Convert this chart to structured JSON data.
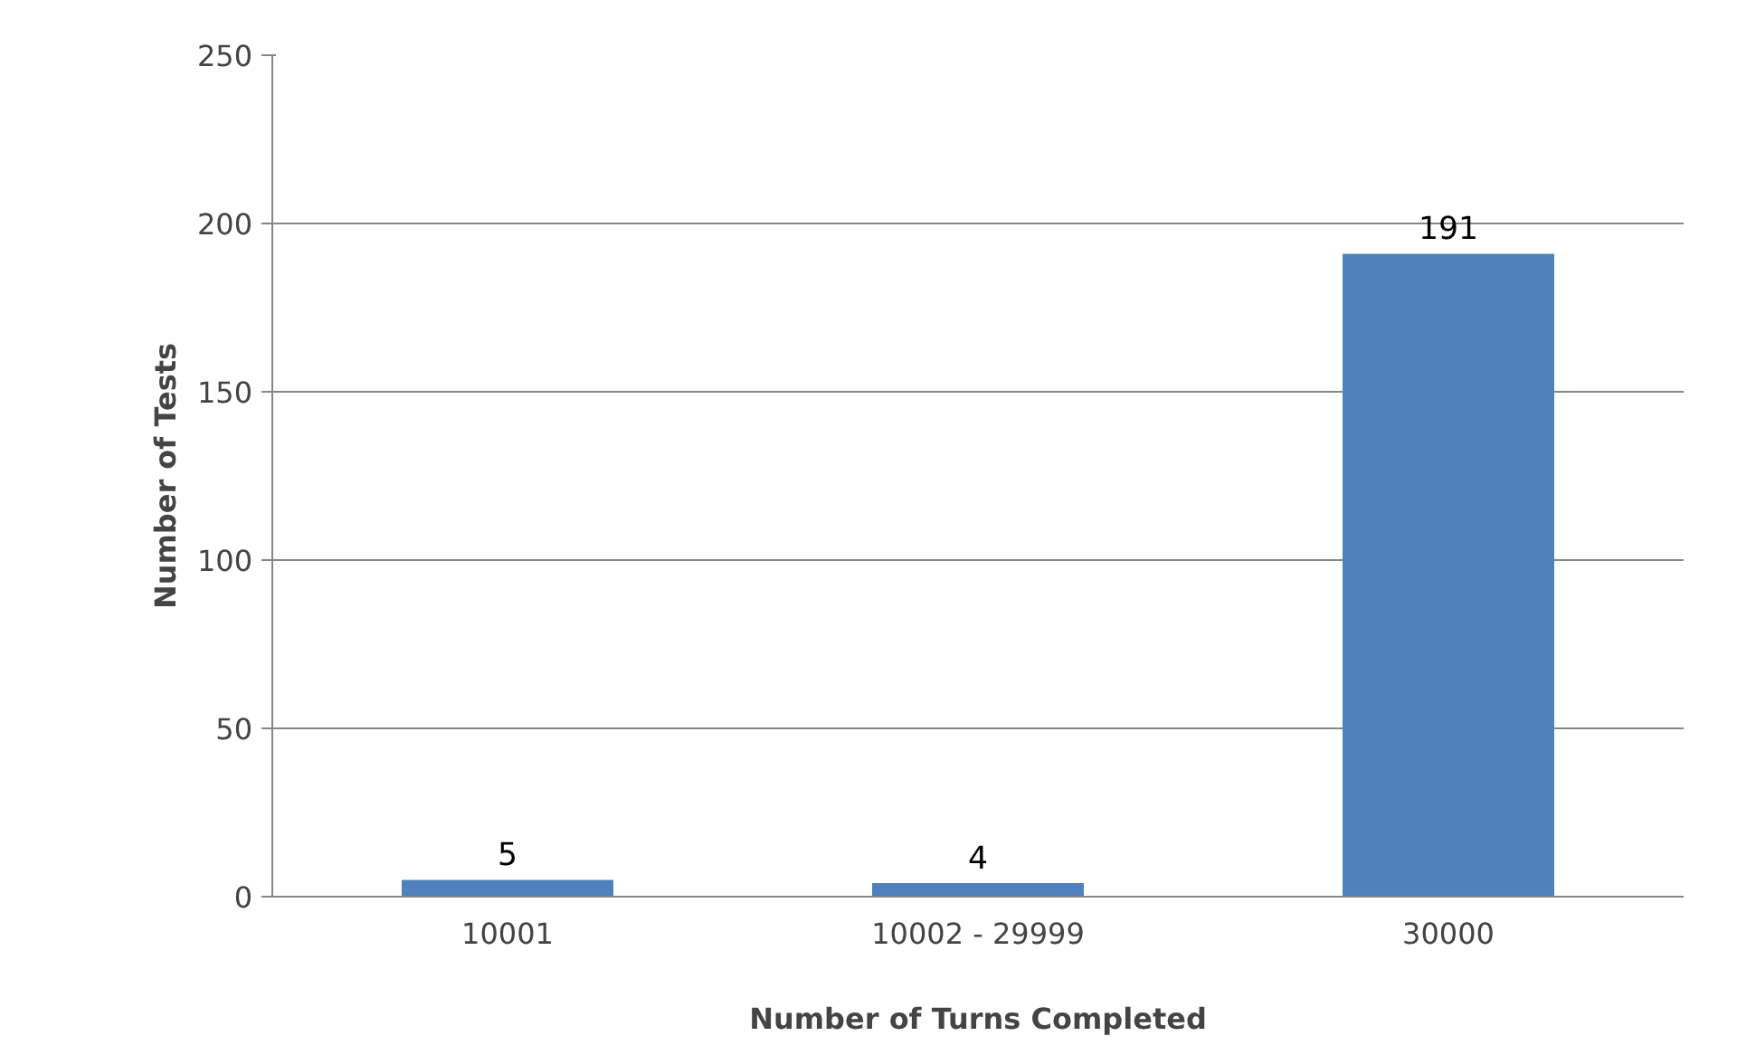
{
  "chart_data": {
    "type": "bar",
    "xlabel": "Number of Turns Completed",
    "ylabel": "Number of Tests",
    "categories": [
      "10001",
      "10002 - 29999",
      "30000"
    ],
    "values": [
      5,
      4,
      191
    ],
    "color": "#4f81bd",
    "ylim": [
      0,
      250
    ],
    "yticks": [
      0,
      50,
      100,
      150,
      200,
      250
    ],
    "grid": "y",
    "data_labels": true
  }
}
